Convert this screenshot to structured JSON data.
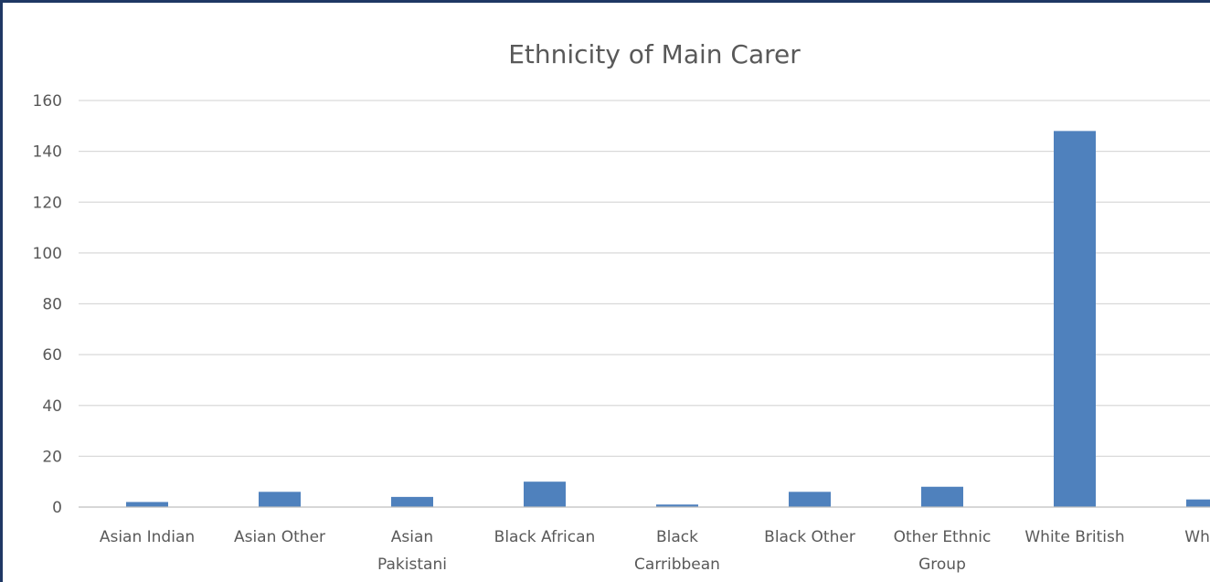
{
  "chart_data": {
    "type": "bar",
    "title": "Ethnicity of Main Carer",
    "categories": [
      "Asian Indian",
      "Asian Other",
      "Asian Pakistani",
      "Black African",
      "Black Carribbean",
      "Black Other",
      "Other Ethnic Group",
      "White British",
      "White"
    ],
    "category_label_lines": [
      [
        "Asian Indian"
      ],
      [
        "Asian Other"
      ],
      [
        "Asian",
        "Pakistani"
      ],
      [
        "Black African"
      ],
      [
        "Black",
        "Carribbean"
      ],
      [
        "Black Other"
      ],
      [
        "Other Ethnic",
        "Group"
      ],
      [
        "White British"
      ],
      [
        "White"
      ]
    ],
    "values": [
      2,
      6,
      4,
      10,
      1,
      6,
      8,
      148,
      3
    ],
    "ylim": [
      0,
      160
    ],
    "yticks": [
      0,
      20,
      40,
      60,
      80,
      100,
      120,
      140,
      160
    ],
    "xlabel": "",
    "ylabel": "",
    "grid": true,
    "legend": "none",
    "bar_color": "#4F81BD"
  }
}
